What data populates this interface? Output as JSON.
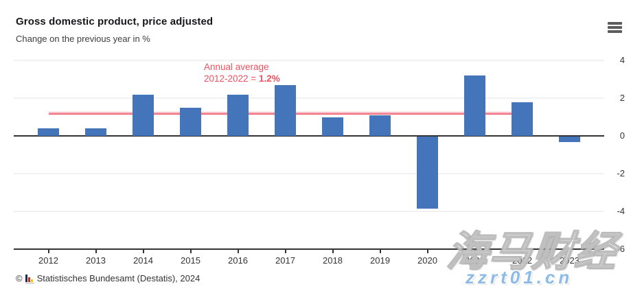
{
  "header": {
    "title": "Gross domestic product, price adjusted",
    "subtitle": "Change on the previous year in %"
  },
  "annotation": {
    "line1": "Annual average",
    "line2_prefix": "2012-2022 = ",
    "line2_value": "1.2%",
    "color": "#f0515f"
  },
  "chart_data": {
    "type": "bar",
    "title": "Gross domestic product, price adjusted",
    "subtitle": "Change on the previous year in %",
    "categories": [
      "2012",
      "2013",
      "2014",
      "2015",
      "2016",
      "2017",
      "2018",
      "2019",
      "2020",
      "2021",
      "2022",
      "2023"
    ],
    "values": [
      0.4,
      0.4,
      2.2,
      1.5,
      2.2,
      2.7,
      1.0,
      1.1,
      -3.8,
      3.2,
      1.8,
      -0.3
    ],
    "xlabel": "",
    "ylabel": "",
    "ylim": [
      -6,
      4
    ],
    "yticks": [
      4,
      2,
      0,
      -2,
      -4,
      -6
    ],
    "grid": true,
    "legend": "none",
    "bar_color": "#4474b9",
    "grid_color": "#f1f1f3",
    "axis_color": "#333333",
    "average_line": {
      "value": 1.2,
      "from_category": "2012",
      "to_category": "2022",
      "color": "#ee5f70"
    }
  },
  "footer": {
    "copyright": "©",
    "source": "Statistisches Bundesamt (Destatis), 2024"
  },
  "watermark": {
    "text_cjk": "海马财经",
    "text_url": "zzrt01.cn",
    "url_color": "#8cbbe8"
  }
}
